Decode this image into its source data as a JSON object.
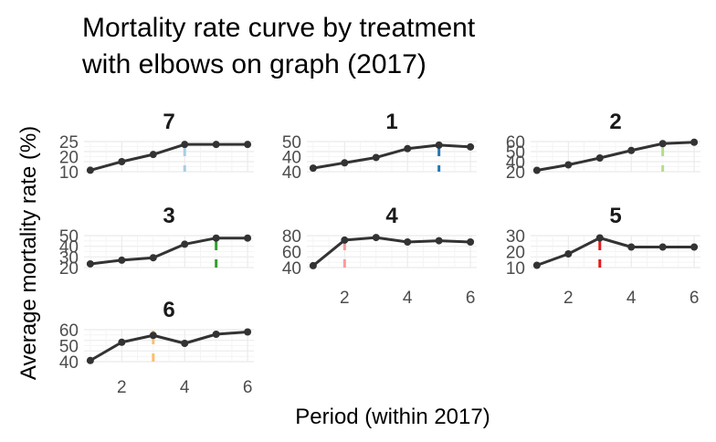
{
  "chart_data": {
    "type": "line",
    "title_lines": [
      "Mortality rate curve by treatment",
      "with elbows on graph (2017)"
    ],
    "xlabel": "Period (within 2017)",
    "ylabel": "Average mortality rate (%)",
    "x": [
      1,
      2,
      3,
      4,
      5,
      6
    ],
    "xticks": [
      "2",
      "4",
      "6"
    ],
    "xlim": [
      0.8,
      6.2
    ],
    "grid": true,
    "panels": [
      {
        "name": "7",
        "values": [
          9,
          15,
          20,
          27,
          27,
          27
        ],
        "ylim": [
          8,
          29
        ],
        "yticks": [
          "10",
          "20",
          "25"
        ],
        "elbow_x": 4,
        "elbow_color": "#a6cee3"
      },
      {
        "name": "1",
        "values": [
          41,
          44,
          47,
          52,
          54,
          53
        ],
        "ylim": [
          39,
          56
        ],
        "yticks": [
          "40",
          "40",
          "50"
        ],
        "elbow_x": 5,
        "elbow_color": "#1f78b4"
      },
      {
        "name": "2",
        "values": [
          20,
          28,
          38,
          49,
          59,
          61
        ],
        "ylim": [
          18,
          62
        ],
        "yticks": [
          "20",
          "40",
          "50",
          "60"
        ],
        "elbow_x": 5,
        "elbow_color": "#b2df8a"
      },
      {
        "name": "3",
        "values": [
          29,
          32,
          34,
          45,
          50,
          50
        ],
        "ylim": [
          26,
          52
        ],
        "yticks": [
          "20",
          "30",
          "40",
          "50"
        ],
        "elbow_x": 5,
        "elbow_color": "#33a02c"
      },
      {
        "name": "4",
        "values": [
          40,
          80,
          84,
          77,
          79,
          77
        ],
        "ylim": [
          37,
          87
        ],
        "yticks": [
          "40",
          "60",
          "80"
        ],
        "elbow_x": 2,
        "elbow_color": "#fb9a99"
      },
      {
        "name": "5",
        "values": [
          8,
          18,
          32,
          24,
          24,
          24
        ],
        "ylim": [
          6,
          34
        ],
        "yticks": [
          "10",
          "20",
          "30"
        ],
        "elbow_x": 3,
        "elbow_color": "#e31a1c"
      },
      {
        "name": "6",
        "values": [
          37,
          53,
          59,
          52,
          60,
          62
        ],
        "ylim": [
          36,
          64
        ],
        "yticks": [
          "40",
          "50",
          "60"
        ],
        "elbow_x": 3,
        "elbow_color": "#fdbf6f"
      }
    ]
  }
}
